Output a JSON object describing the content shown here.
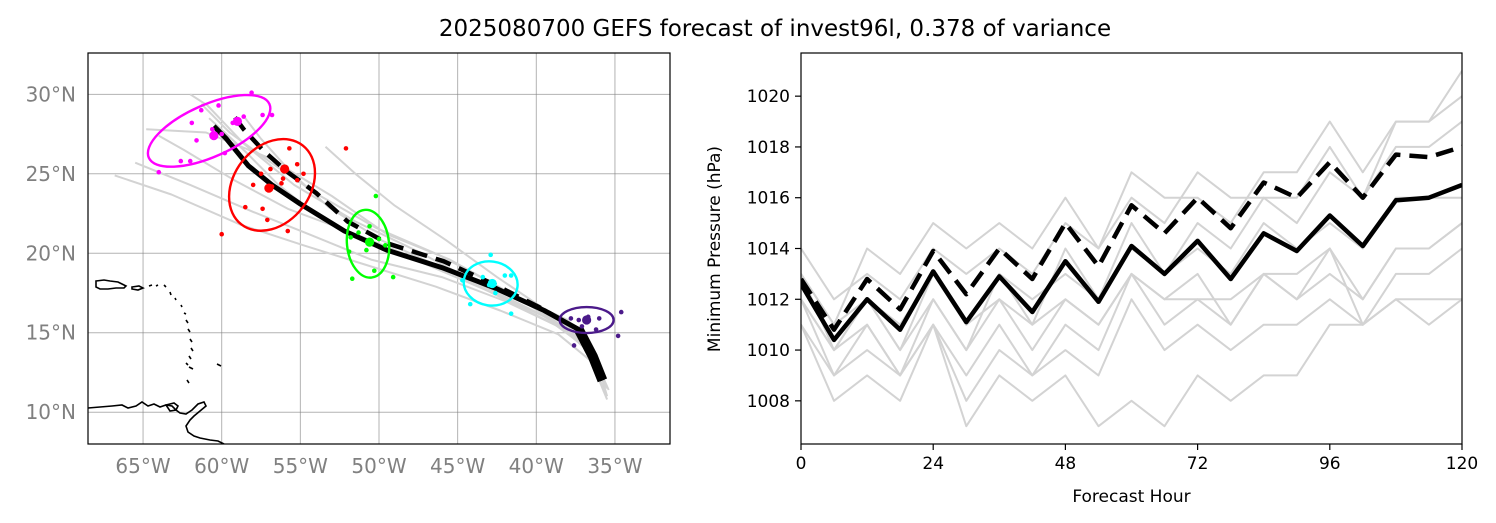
{
  "title": "2025080700 GEFS forecast of invest96l, 0.378 of variance",
  "colors": {
    "ensemble": "#d3d3d3",
    "mean": "#000000",
    "grid": "#808080",
    "map_tick": "#808080",
    "coast": "#000000"
  },
  "chart_data": [
    {
      "type": "map",
      "projection": "plate-carree",
      "lon_range": [
        -68.5,
        -31.5
      ],
      "lat_range": [
        8.0,
        32.6
      ],
      "grid": true,
      "x_ticks": [
        -65,
        -60,
        -55,
        -50,
        -45,
        -40,
        -35
      ],
      "x_tick_labels": [
        "65°W",
        "60°W",
        "55°W",
        "50°W",
        "45°W",
        "40°W",
        "35°W"
      ],
      "y_ticks": [
        10,
        15,
        20,
        25,
        30
      ],
      "y_tick_labels": [
        "10°N",
        "15°N",
        "20°N",
        "25°N",
        "30°N"
      ],
      "mean_track_solid": [
        [
          -35.8,
          12.0
        ],
        [
          -36.4,
          13.5
        ],
        [
          -37.3,
          15.2
        ],
        [
          -39.5,
          16.4
        ],
        [
          -42.6,
          17.8
        ],
        [
          -46.0,
          19.1
        ],
        [
          -49.5,
          20.2
        ],
        [
          -52.2,
          21.4
        ],
        [
          -55.0,
          23.1
        ],
        [
          -56.8,
          24.3
        ],
        [
          -58.3,
          25.5
        ],
        [
          -59.7,
          27.2
        ],
        [
          -60.5,
          28.0
        ]
      ],
      "mean_track_dashed": [
        [
          -35.8,
          12.0
        ],
        [
          -36.4,
          13.5
        ],
        [
          -37.3,
          15.2
        ],
        [
          -39.8,
          16.6
        ],
        [
          -42.6,
          18.0
        ],
        [
          -45.9,
          19.5
        ],
        [
          -49.4,
          20.6
        ],
        [
          -52.0,
          22.0
        ],
        [
          -54.0,
          23.8
        ],
        [
          -55.8,
          25.1
        ],
        [
          -57.3,
          26.4
        ],
        [
          -58.6,
          27.8
        ],
        [
          -59.5,
          29.0
        ]
      ],
      "member_tracks": [
        [
          [
            -35.5,
            11.0
          ],
          [
            -36.3,
            13.8
          ],
          [
            -38.0,
            15.8
          ],
          [
            -41.5,
            17.4
          ],
          [
            -45.5,
            19.6
          ],
          [
            -49.5,
            21.2
          ],
          [
            -53.0,
            23.6
          ],
          [
            -57.0,
            26.0
          ],
          [
            -61.0,
            27.6
          ],
          [
            -64.8,
            27.8
          ]
        ],
        [
          [
            -35.6,
            11.2
          ],
          [
            -36.8,
            14.0
          ],
          [
            -39.0,
            15.8
          ],
          [
            -43.0,
            17.6
          ],
          [
            -47.0,
            19.3
          ],
          [
            -51.0,
            20.8
          ],
          [
            -54.0,
            22.4
          ],
          [
            -56.5,
            24.4
          ],
          [
            -58.5,
            26.4
          ],
          [
            -60.8,
            28.5
          ]
        ],
        [
          [
            -35.4,
            11.4
          ],
          [
            -36.4,
            13.6
          ],
          [
            -38.4,
            15.3
          ],
          [
            -42.0,
            17.0
          ],
          [
            -46.0,
            18.5
          ],
          [
            -50.5,
            19.6
          ],
          [
            -54.2,
            21.1
          ],
          [
            -58.0,
            22.6
          ],
          [
            -62.0,
            24.3
          ],
          [
            -65.5,
            25.7
          ]
        ],
        [
          [
            -35.5,
            11.5
          ],
          [
            -37.0,
            14.5
          ],
          [
            -39.8,
            16.2
          ],
          [
            -43.5,
            18.0
          ],
          [
            -47.5,
            20.1
          ],
          [
            -51.5,
            22.0
          ],
          [
            -55.4,
            24.3
          ],
          [
            -58.6,
            26.9
          ],
          [
            -60.9,
            29.3
          ],
          [
            -62.0,
            30.0
          ]
        ],
        [
          [
            -35.5,
            10.8
          ],
          [
            -36.5,
            13.2
          ],
          [
            -38.6,
            14.9
          ],
          [
            -42.3,
            16.4
          ],
          [
            -46.4,
            17.9
          ],
          [
            -50.6,
            19.2
          ],
          [
            -54.8,
            20.5
          ],
          [
            -58.8,
            21.8
          ],
          [
            -63.2,
            23.7
          ],
          [
            -66.8,
            24.9
          ]
        ],
        [
          [
            -35.6,
            11.8
          ],
          [
            -36.9,
            14.3
          ],
          [
            -39.2,
            16.3
          ],
          [
            -42.5,
            18.5
          ],
          [
            -45.7,
            20.8
          ],
          [
            -49.0,
            23.0
          ],
          [
            -51.5,
            25.0
          ],
          [
            -53.4,
            26.7
          ]
        ],
        [
          [
            -35.7,
            11.3
          ],
          [
            -36.6,
            13.9
          ],
          [
            -38.8,
            15.5
          ],
          [
            -42.2,
            17.2
          ],
          [
            -45.8,
            19.0
          ],
          [
            -49.8,
            20.8
          ],
          [
            -53.2,
            22.9
          ],
          [
            -55.6,
            25.1
          ],
          [
            -57.5,
            27.2
          ],
          [
            -58.5,
            28.5
          ]
        ],
        [
          [
            -35.6,
            12.2
          ],
          [
            -37.2,
            14.8
          ],
          [
            -40.0,
            16.7
          ],
          [
            -43.8,
            18.2
          ],
          [
            -48.0,
            19.8
          ],
          [
            -52.0,
            21.4
          ],
          [
            -55.8,
            22.8
          ],
          [
            -59.2,
            24.6
          ],
          [
            -62.4,
            26.5
          ],
          [
            -64.0,
            27.4
          ]
        ],
        [
          [
            -35.5,
            11.6
          ],
          [
            -36.7,
            14.1
          ],
          [
            -38.9,
            15.8
          ],
          [
            -42.4,
            17.9
          ],
          [
            -46.2,
            19.9
          ],
          [
            -50.2,
            21.6
          ],
          [
            -53.9,
            23.7
          ],
          [
            -57.0,
            25.8
          ],
          [
            -59.5,
            27.6
          ],
          [
            -61.3,
            29.4
          ]
        ]
      ],
      "ellipses": [
        {
          "color": "#ff00ff",
          "center": [
            -60.8,
            27.7
          ],
          "dots": [
            [
              -64.0,
              25.1
            ],
            [
              -62.6,
              25.8
            ],
            [
              -62.0,
              25.8
            ],
            [
              -61.6,
              27.1
            ],
            [
              -61.9,
              28.2
            ],
            [
              -60.6,
              27.8
            ],
            [
              -60.2,
              29.3
            ],
            [
              -59.3,
              28.2
            ],
            [
              -58.6,
              28.6
            ],
            [
              -58.1,
              30.1
            ],
            [
              -57.4,
              28.7
            ],
            [
              -56.8,
              28.7
            ],
            [
              -59.8,
              26.3
            ],
            [
              -60.0,
              27.5
            ],
            [
              -61.3,
              29.0
            ]
          ],
          "big_dots": [
            [
              -60.5,
              27.4
            ],
            [
              -59.0,
              28.3
            ]
          ]
        },
        {
          "color": "#ff0000",
          "center": [
            -56.8,
            24.3
          ],
          "dots": [
            [
              -60.0,
              21.2
            ],
            [
              -58.5,
              22.9
            ],
            [
              -57.4,
              22.8
            ],
            [
              -57.1,
              22.1
            ],
            [
              -55.8,
              21.4
            ],
            [
              -56.8,
              24.2
            ],
            [
              -56.2,
              24.4
            ],
            [
              -55.7,
              26.6
            ],
            [
              -55.2,
              24.6
            ],
            [
              -54.8,
              25.0
            ],
            [
              -57.5,
              25.0
            ],
            [
              -58.0,
              24.3
            ],
            [
              -56.9,
              25.3
            ],
            [
              -52.1,
              26.6
            ],
            [
              -55.2,
              25.6
            ],
            [
              -56.1,
              24.7
            ]
          ],
          "big_dots": [
            [
              -56.0,
              25.3
            ],
            [
              -57.0,
              24.1
            ]
          ]
        },
        {
          "color": "#00ff00",
          "center": [
            -50.7,
            20.6
          ],
          "dots": [
            [
              -51.7,
              18.4
            ],
            [
              -50.3,
              18.9
            ],
            [
              -49.1,
              18.5
            ],
            [
              -51.8,
              21.0
            ],
            [
              -50.2,
              23.6
            ],
            [
              -49.6,
              20.5
            ],
            [
              -51.3,
              21.3
            ],
            [
              -50.6,
              21.7
            ],
            [
              -51.9,
              20.1
            ],
            [
              -50.0,
              20.9
            ],
            [
              -50.8,
              20.2
            ]
          ],
          "big_dots": [
            [
              -50.6,
              20.7
            ]
          ]
        },
        {
          "color": "#00ffff",
          "center": [
            -42.9,
            18.1
          ],
          "dots": [
            [
              -44.2,
              16.8
            ],
            [
              -41.6,
              16.2
            ],
            [
              -42.9,
              19.9
            ],
            [
              -44.7,
              18.3
            ],
            [
              -41.6,
              18.6
            ],
            [
              -43.4,
              18.5
            ],
            [
              -42.6,
              17.5
            ],
            [
              -42.0,
              18.6
            ],
            [
              -43.0,
              18.0
            ]
          ],
          "big_dots": [
            [
              -42.8,
              18.1
            ]
          ]
        },
        {
          "color": "#4b1a8a",
          "center": [
            -36.8,
            15.8
          ],
          "dots": [
            [
              -34.6,
              16.3
            ],
            [
              -34.8,
              14.8
            ],
            [
              -37.6,
              14.2
            ],
            [
              -36.2,
              15.2
            ],
            [
              -37.8,
              15.9
            ],
            [
              -36.7,
              16.0
            ],
            [
              -37.1,
              15.4
            ],
            [
              -36.0,
              15.9
            ],
            [
              -37.3,
              15.8
            ]
          ],
          "big_dots": [
            [
              -36.8,
              15.8
            ]
          ]
        }
      ]
    },
    {
      "type": "line",
      "xlabel": "Forecast Hour",
      "ylabel": "Minimum Pressure (hPa)",
      "xlim": [
        0,
        120
      ],
      "ylim": [
        1006.3,
        1021.7
      ],
      "x_ticks": [
        0,
        24,
        48,
        72,
        96,
        120
      ],
      "x_tick_labels": [
        "0",
        "24",
        "48",
        "72",
        "96",
        "120"
      ],
      "y_ticks": [
        1008,
        1010,
        1012,
        1014,
        1016,
        1018,
        1020
      ],
      "y_tick_labels": [
        "1008",
        "1010",
        "1012",
        "1014",
        "1016",
        "1018",
        "1020"
      ],
      "x": [
        0,
        6,
        12,
        18,
        24,
        30,
        36,
        42,
        48,
        54,
        60,
        66,
        72,
        78,
        84,
        90,
        96,
        102,
        108,
        114,
        120
      ],
      "mean_solid": [
        1012.6,
        1010.4,
        1012.0,
        1010.8,
        1013.1,
        1011.1,
        1012.9,
        1011.5,
        1013.5,
        1011.9,
        1014.1,
        1013.0,
        1014.3,
        1012.8,
        1014.6,
        1013.9,
        1015.3,
        1014.1,
        1015.9,
        1016.0,
        1016.5
      ],
      "mean_dashed": [
        1012.8,
        1010.8,
        1012.8,
        1011.6,
        1013.9,
        1012.2,
        1014.0,
        1012.8,
        1015.0,
        1013.3,
        1015.7,
        1014.6,
        1016.0,
        1014.8,
        1016.6,
        1016.0,
        1017.4,
        1016.0,
        1017.7,
        1017.6,
        1018.0
      ],
      "members": [
        [
          1013,
          1011,
          1014,
          1013,
          1015,
          1014,
          1015,
          1014,
          1016,
          1014,
          1017,
          1016,
          1016,
          1015,
          1017,
          1017,
          1019,
          1017,
          1019,
          1019,
          1021
        ],
        [
          1014,
          1012,
          1013,
          1012,
          1014,
          1013,
          1014,
          1013,
          1015,
          1014,
          1016,
          1015,
          1017,
          1016,
          1016,
          1016,
          1018,
          1016,
          1019,
          1019,
          1020
        ],
        [
          1012,
          1009,
          1011,
          1009,
          1012,
          1010,
          1012,
          1011,
          1014,
          1012,
          1015,
          1013,
          1015,
          1014,
          1016,
          1015,
          1017,
          1016,
          1018,
          1018,
          1019
        ],
        [
          1011,
          1008,
          1009,
          1008,
          1011,
          1007,
          1009,
          1008,
          1009,
          1007,
          1008,
          1007,
          1009,
          1008,
          1009,
          1009,
          1011,
          1011,
          1012,
          1012,
          1012
        ],
        [
          1012,
          1010,
          1011,
          1009,
          1011,
          1009,
          1011,
          1009,
          1011,
          1010,
          1013,
          1011,
          1012,
          1011,
          1013,
          1012,
          1014,
          1012,
          1014,
          1014,
          1015
        ],
        [
          1013,
          1011,
          1012,
          1010,
          1012,
          1010,
          1013,
          1011,
          1012,
          1011,
          1013,
          1012,
          1013,
          1011,
          1013,
          1013,
          1014,
          1011,
          1012,
          1011,
          1012
        ],
        [
          1012,
          1010,
          1012,
          1011,
          1013,
          1011,
          1013,
          1012,
          1013,
          1012,
          1014,
          1013,
          1014,
          1013,
          1015,
          1014,
          1015,
          1014,
          1016,
          1016,
          1016
        ],
        [
          1011,
          1009,
          1010,
          1009,
          1011,
          1008,
          1010,
          1009,
          1010,
          1009,
          1012,
          1010,
          1011,
          1010,
          1011,
          1011,
          1012,
          1011,
          1013,
          1013,
          1014
        ],
        [
          1013,
          1010,
          1012,
          1010,
          1013,
          1011,
          1012,
          1010,
          1012,
          1011,
          1013,
          1012,
          1012,
          1012,
          1013,
          1012,
          1013,
          1012,
          1014,
          1014,
          1015
        ]
      ]
    }
  ]
}
